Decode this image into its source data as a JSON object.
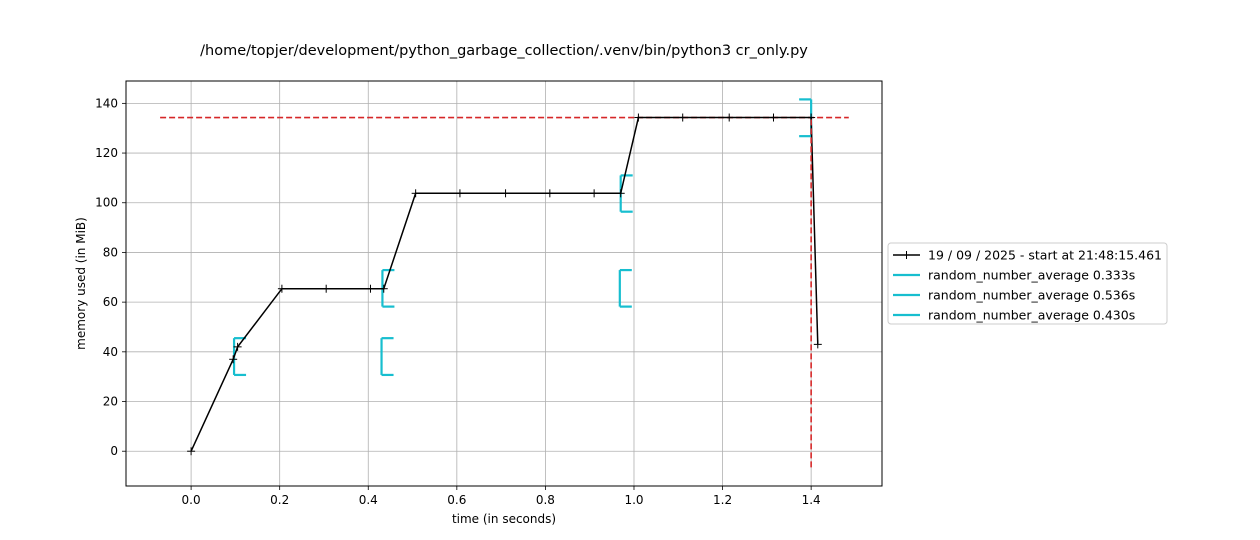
{
  "chart_data": {
    "type": "line",
    "title": "/home/topjer/development/python_garbage_collection/.venv/bin/python3 cr_only.py",
    "xlabel": "time (in seconds)",
    "ylabel": "memory used (in MiB)",
    "xlim": [
      -0.147,
      1.56
    ],
    "ylim": [
      -14,
      149
    ],
    "xticks": [
      0.0,
      0.2,
      0.4,
      0.6,
      0.8,
      1.0,
      1.2,
      1.4
    ],
    "xtick_labels": [
      "0.0",
      "0.2",
      "0.4",
      "0.6",
      "0.8",
      "1.0",
      "1.2",
      "1.4"
    ],
    "yticks": [
      0,
      20,
      40,
      60,
      80,
      100,
      120,
      140
    ],
    "ytick_labels": [
      "0",
      "20",
      "40",
      "60",
      "80",
      "100",
      "120",
      "140"
    ],
    "grid": true,
    "legend_position": "center-right-outside",
    "series": [
      {
        "name": "19 / 09 / 2025 - start at 21:48:15.461",
        "color": "#000000",
        "marker": "plus",
        "x": [
          0.0,
          0.095,
          0.105,
          0.205,
          0.305,
          0.405,
          0.435,
          0.507,
          0.607,
          0.71,
          0.81,
          0.91,
          0.97,
          1.01,
          1.11,
          1.215,
          1.315,
          1.4,
          1.415
        ],
        "y": [
          0.0,
          37.0,
          42.0,
          65.4,
          65.4,
          65.4,
          65.4,
          103.8,
          103.8,
          103.8,
          103.8,
          103.8,
          103.8,
          134.3,
          134.3,
          134.3,
          134.3,
          134.3,
          43.0
        ]
      }
    ],
    "function_brackets": [
      {
        "name": "random_number_average 0.333s",
        "color": "#17becf",
        "x_start": 0.097,
        "x_end": 0.43,
        "y_low": 30.7,
        "y_high": 45.5
      },
      {
        "name": "random_number_average 0.536s",
        "color": "#17becf",
        "x_start": 0.432,
        "x_end": 0.968,
        "y_low": 58.2,
        "y_high": 72.9
      },
      {
        "name": "random_number_average 0.430s",
        "color": "#17becf",
        "x_start": 0.97,
        "x_end": 1.4,
        "y_low": 96.4,
        "y_high": 111.0
      }
    ],
    "last_bracket_end_marks": {
      "x": 1.4,
      "y_low": 126.8,
      "y_high": 141.6
    },
    "max_memory_line": {
      "y": 134.3,
      "x_start": -0.07,
      "x_end": 1.485,
      "color": "#d62728"
    },
    "max_time_line": {
      "x": 1.4,
      "y_start": -6.5,
      "y_end": 134.3,
      "color": "#d62728"
    }
  }
}
